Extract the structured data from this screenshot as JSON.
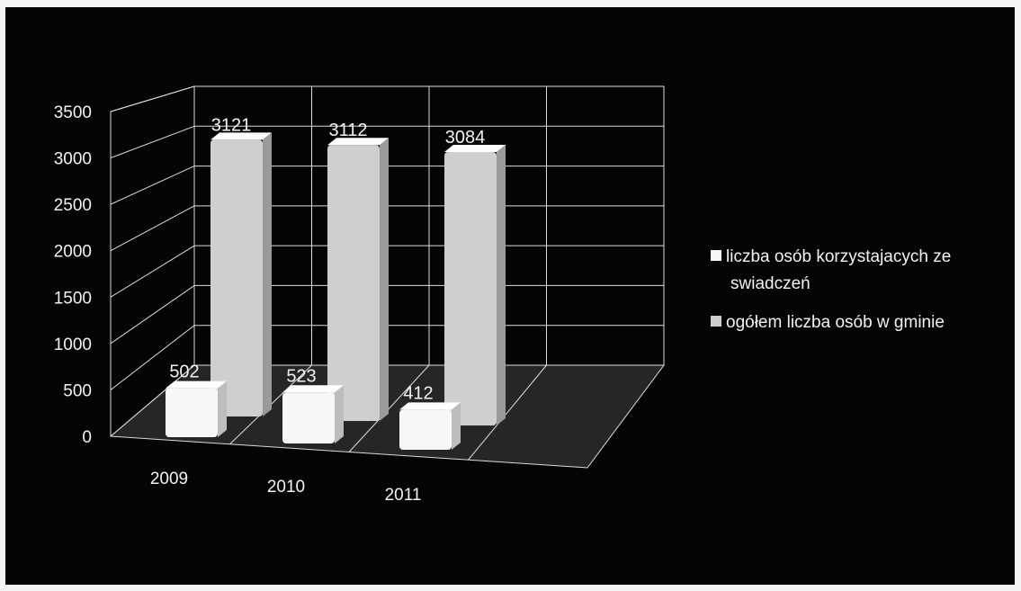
{
  "chart_data": {
    "type": "bar",
    "variant": "3d-column",
    "categories": [
      "2009",
      "2010",
      "2011"
    ],
    "series": [
      {
        "name": "liczba osób korzystajacych ze swiadczeń",
        "values": [
          502,
          523,
          412
        ],
        "color": "#f7f7f7"
      },
      {
        "name": "ogółem liczba osób w gminie",
        "values": [
          3121,
          3112,
          3084
        ],
        "color": "#cfcfcf"
      }
    ],
    "y_ticks": [
      "0",
      "500",
      "1000",
      "1500",
      "2000",
      "2500",
      "3000",
      "3500"
    ],
    "ylim": [
      0,
      3500
    ],
    "grid": true,
    "legend_position": "right",
    "background": "#050505"
  }
}
